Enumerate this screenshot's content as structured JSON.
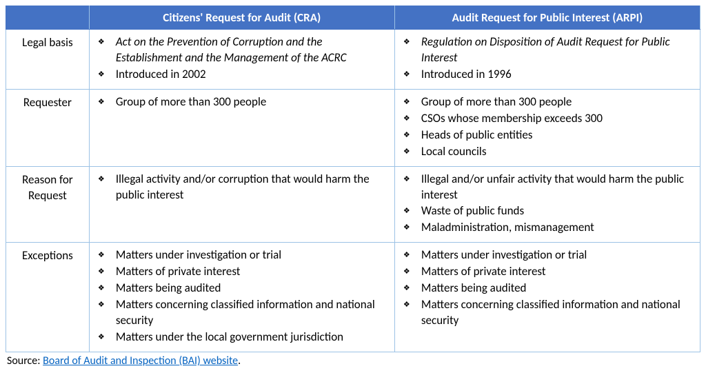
{
  "colors": {
    "header_bg": "#4472c4",
    "header_text": "#ffffff",
    "border": "#9cc2e5",
    "body_text": "#000000",
    "link": "#0563c1",
    "bg": "#ffffff"
  },
  "typography": {
    "font_family": "Calibri",
    "header_fontsize": 17,
    "body_fontsize": 17,
    "source_fontsize": 16
  },
  "layout": {
    "col_widths_pct": [
      12,
      44,
      44
    ],
    "bullet_glyph": "❖"
  },
  "header": {
    "corner": "",
    "col1": "Citizens' Request for Audit (CRA)",
    "col2": "Audit Request for Public Interest (ARPI)"
  },
  "rows": {
    "legal_basis": {
      "label": "Legal basis",
      "cra": [
        {
          "text": "Act on the Prevention of Corruption and the Establishment and the Management of the ACRC",
          "italic": true
        },
        {
          "text": "Introduced in 2002",
          "italic": false
        }
      ],
      "arpi": [
        {
          "text": "Regulation on Disposition of Audit Request for Public Interest",
          "italic": true
        },
        {
          "text": "Introduced in 1996",
          "italic": false
        }
      ]
    },
    "requester": {
      "label": "Requester",
      "cra": [
        {
          "text": "Group of more than 300 people",
          "italic": false
        }
      ],
      "arpi": [
        {
          "text": "Group of more than 300 people",
          "italic": false
        },
        {
          "text": "CSOs whose membership exceeds 300",
          "italic": false
        },
        {
          "text": "Heads of public entities",
          "italic": false
        },
        {
          "text": "Local councils",
          "italic": false
        }
      ]
    },
    "reason": {
      "label_line1": "Reason for",
      "label_line2": "Request",
      "cra": [
        {
          "text": "Illegal activity and/or corruption that would harm the public interest",
          "italic": false
        }
      ],
      "arpi": [
        {
          "text": "Illegal and/or unfair activity that would harm the public interest",
          "italic": false
        },
        {
          "text": "Waste of public funds",
          "italic": false
        },
        {
          "text": "Maladministration, mismanagement",
          "italic": false
        }
      ]
    },
    "exceptions": {
      "label": "Exceptions",
      "cra": [
        {
          "text": "Matters under investigation or trial",
          "italic": false
        },
        {
          "text": "Matters of private interest",
          "italic": false
        },
        {
          "text": "Matters being audited",
          "italic": false
        },
        {
          "text": "Matters concerning classified information and national security",
          "italic": false
        },
        {
          "text": "Matters under the local government jurisdiction",
          "italic": false
        }
      ],
      "arpi": [
        {
          "text": "Matters under investigation or trial",
          "italic": false
        },
        {
          "text": "Matters of private interest",
          "italic": false
        },
        {
          "text": "Matters being audited",
          "italic": false
        },
        {
          "text": "Matters concerning classified information and national security",
          "italic": false
        }
      ]
    }
  },
  "source": {
    "prefix": "Source: ",
    "link_text": "Board of Audit and Inspection (BAI) website",
    "suffix": "."
  }
}
